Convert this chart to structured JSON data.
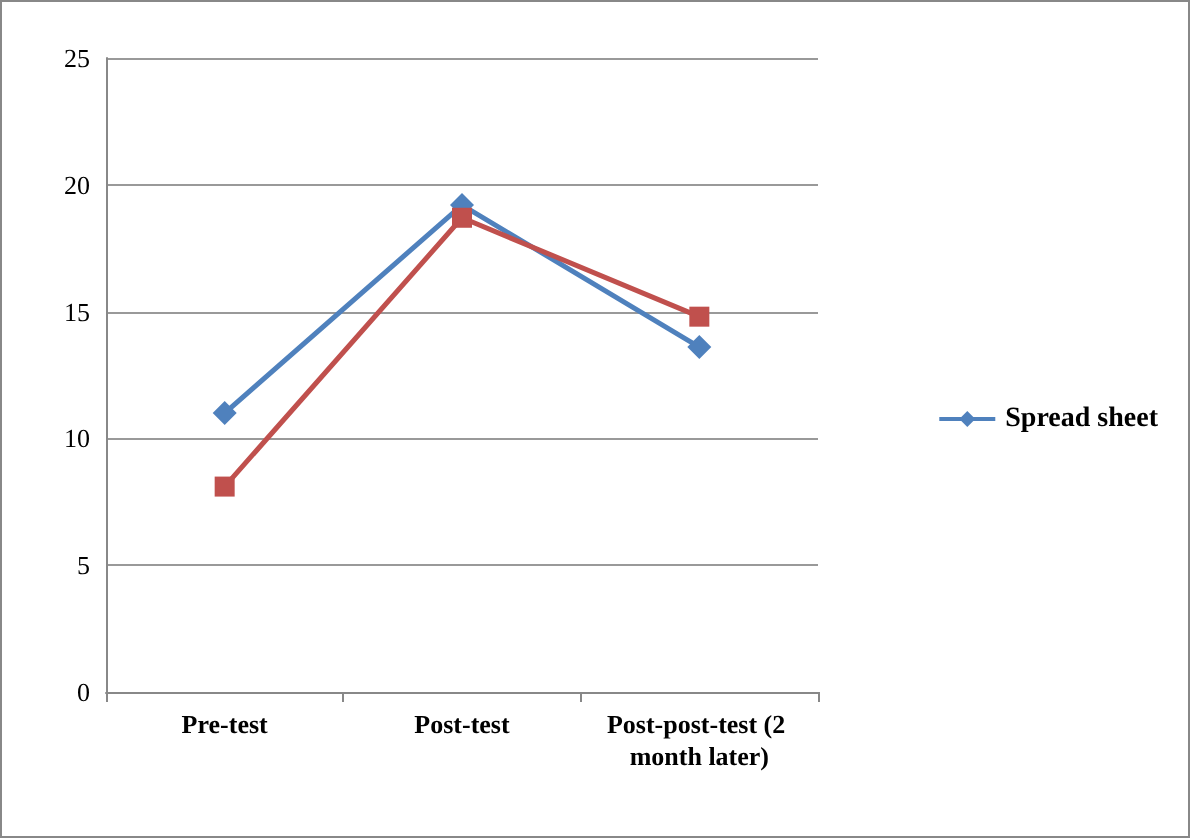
{
  "chart_data": {
    "type": "line",
    "categories": [
      "Pre-test",
      "Post-test",
      "Post-post-test (2 month later)"
    ],
    "series": [
      {
        "name": "Spread sheet",
        "color": "#4f81bd",
        "marker": "diamond",
        "values": [
          11,
          19.2,
          13.6
        ]
      },
      {
        "color": "#c0504d",
        "marker": "square",
        "values": [
          8.1,
          18.7,
          14.8
        ]
      }
    ],
    "ylim": [
      0,
      25
    ],
    "yticks": [
      0,
      5,
      10,
      15,
      20,
      25
    ],
    "grid": "y",
    "legend": "right",
    "line_style": "solid"
  }
}
